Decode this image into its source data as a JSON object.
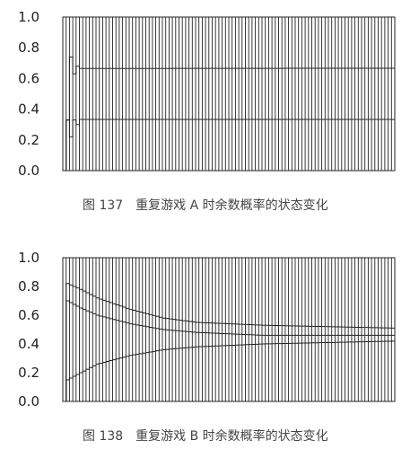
{
  "chart_data": [
    {
      "type": "line",
      "caption": "图 137　重复游戏 A 时余数概率的状态变化",
      "ylim": [
        0,
        1
      ],
      "yticks": [
        "0.0",
        "0.2",
        "0.4",
        "0.6",
        "0.8",
        "1.0"
      ],
      "steps": 100,
      "vertical_lines": true,
      "series": [
        {
          "points": [
            [
              0,
              0.0
            ],
            [
              1,
              0.33
            ],
            [
              2,
              0.22
            ],
            [
              3,
              0.33
            ],
            [
              4,
              0.3
            ],
            [
              5,
              0.333
            ],
            [
              100,
              0.333
            ]
          ]
        },
        {
          "points": [
            [
              0,
              0.0
            ],
            [
              1,
              0.33
            ],
            [
              2,
              0.74
            ],
            [
              3,
              0.63
            ],
            [
              4,
              0.68
            ],
            [
              5,
              0.665
            ],
            [
              100,
              0.667
            ]
          ]
        },
        {
          "points": [
            [
              0,
              1.0
            ],
            [
              100,
              1.0
            ]
          ]
        }
      ]
    },
    {
      "type": "line",
      "caption": "图 138　重复游戏 B 时余数概率的状态变化",
      "ylim": [
        0,
        1
      ],
      "yticks": [
        "0.0",
        "0.2",
        "0.4",
        "0.6",
        "0.8",
        "1.0"
      ],
      "steps": 100,
      "vertical_lines": true,
      "series": [
        {
          "points": [
            [
              0,
              0.0
            ],
            [
              1,
              0.15
            ],
            [
              5,
              0.2
            ],
            [
              10,
              0.26
            ],
            [
              20,
              0.32
            ],
            [
              30,
              0.36
            ],
            [
              40,
              0.38
            ],
            [
              60,
              0.4
            ],
            [
              80,
              0.41
            ],
            [
              100,
              0.42
            ]
          ]
        },
        {
          "points": [
            [
              0,
              0.0
            ],
            [
              1,
              0.7
            ],
            [
              5,
              0.65
            ],
            [
              10,
              0.6
            ],
            [
              20,
              0.54
            ],
            [
              30,
              0.5
            ],
            [
              40,
              0.48
            ],
            [
              60,
              0.46
            ],
            [
              80,
              0.46
            ],
            [
              100,
              0.46
            ]
          ]
        },
        {
          "points": [
            [
              0,
              0.0
            ],
            [
              1,
              0.82
            ],
            [
              5,
              0.78
            ],
            [
              10,
              0.72
            ],
            [
              20,
              0.64
            ],
            [
              30,
              0.58
            ],
            [
              40,
              0.55
            ],
            [
              60,
              0.53
            ],
            [
              80,
              0.52
            ],
            [
              100,
              0.51
            ]
          ]
        },
        {
          "points": [
            [
              0,
              1.0
            ],
            [
              100,
              1.0
            ]
          ]
        }
      ]
    }
  ]
}
